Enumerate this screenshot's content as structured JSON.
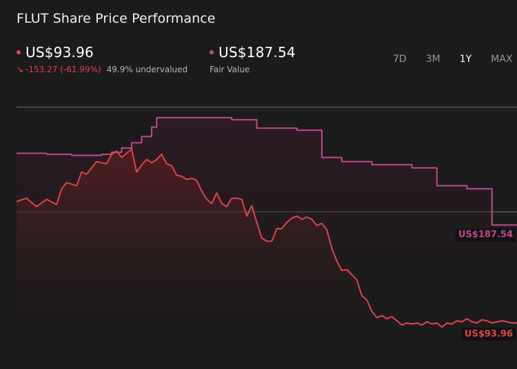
{
  "header": {
    "title": "FLUT Share Price Performance"
  },
  "price": {
    "value": "US$93.96",
    "change": "-153.27 (-61.99%)",
    "undervalued": "49.9% undervalued",
    "color": "#e0454c"
  },
  "fair_value": {
    "value": "US$187.54",
    "label": "Fair Value",
    "color": "#c04a8e"
  },
  "tabs": [
    {
      "label": "7D"
    },
    {
      "label": "3M"
    },
    {
      "label": "1Y",
      "active": true
    },
    {
      "label": "MAX"
    }
  ],
  "icons": {
    "change": "arrow-down-right-icon"
  },
  "chart_data": {
    "type": "line",
    "x_range": [
      0,
      1
    ],
    "ylim": [
      50,
      330
    ],
    "reference_lines": [
      300,
      200
    ],
    "grid": false,
    "series": [
      {
        "color": "#c04a8e",
        "step": true,
        "x": [
          0.0,
          0.06,
          0.11,
          0.17,
          0.19,
          0.21,
          0.23,
          0.25,
          0.27,
          0.28,
          0.43,
          0.48,
          0.56,
          0.61,
          0.65,
          0.71,
          0.79,
          0.84,
          0.9,
          0.95,
          1.0
        ],
        "values": [
          256,
          255,
          254,
          255,
          257,
          261,
          266,
          272,
          281,
          290,
          288,
          280,
          278,
          252,
          248,
          245,
          242,
          225,
          222,
          187.54,
          187.54
        ],
        "end_label": "US$187.54"
      },
      {
        "color": "#e0454c",
        "x": [
          0.0,
          0.02,
          0.04,
          0.06,
          0.08,
          0.09,
          0.1,
          0.12,
          0.13,
          0.14,
          0.16,
          0.18,
          0.19,
          0.2,
          0.21,
          0.22,
          0.23,
          0.24,
          0.25,
          0.26,
          0.27,
          0.28,
          0.29,
          0.3,
          0.31,
          0.32,
          0.33,
          0.34,
          0.35,
          0.36,
          0.37,
          0.38,
          0.39,
          0.4,
          0.41,
          0.42,
          0.43,
          0.44,
          0.45,
          0.46,
          0.47,
          0.48,
          0.49,
          0.5,
          0.51,
          0.52,
          0.53,
          0.54,
          0.55,
          0.56,
          0.57,
          0.58,
          0.59,
          0.6,
          0.61,
          0.62,
          0.63,
          0.64,
          0.65,
          0.66,
          0.67,
          0.68,
          0.69,
          0.7,
          0.71,
          0.72,
          0.73,
          0.74,
          0.75,
          0.76,
          0.77,
          0.78,
          0.79,
          0.8,
          0.81,
          0.82,
          0.83,
          0.84,
          0.85,
          0.86,
          0.87,
          0.88,
          0.89,
          0.9,
          0.91,
          0.92,
          0.93,
          0.94,
          0.95,
          0.96,
          0.97,
          0.98,
          0.99,
          1.0
        ],
        "values": [
          210,
          213,
          205,
          212,
          207,
          222,
          228,
          225,
          238,
          236,
          248,
          246,
          255,
          258,
          252,
          256,
          260,
          238,
          245,
          250,
          247,
          250,
          255,
          246,
          244,
          235,
          234,
          231,
          232,
          230,
          220,
          212,
          208,
          218,
          208,
          205,
          213,
          213,
          212,
          196,
          206,
          190,
          175,
          172,
          172,
          184,
          184,
          190,
          194,
          196,
          193,
          195,
          193,
          187,
          189,
          183,
          165,
          153,
          144,
          145,
          140,
          135,
          120,
          116,
          105,
          99,
          101,
          98,
          100,
          96,
          92,
          94,
          93,
          94,
          92,
          95,
          93,
          94,
          90,
          94,
          93,
          96,
          95,
          98,
          95,
          94,
          97,
          96,
          94,
          95,
          96,
          95,
          94,
          93.96
        ],
        "end_label": "US$93.96"
      }
    ]
  }
}
